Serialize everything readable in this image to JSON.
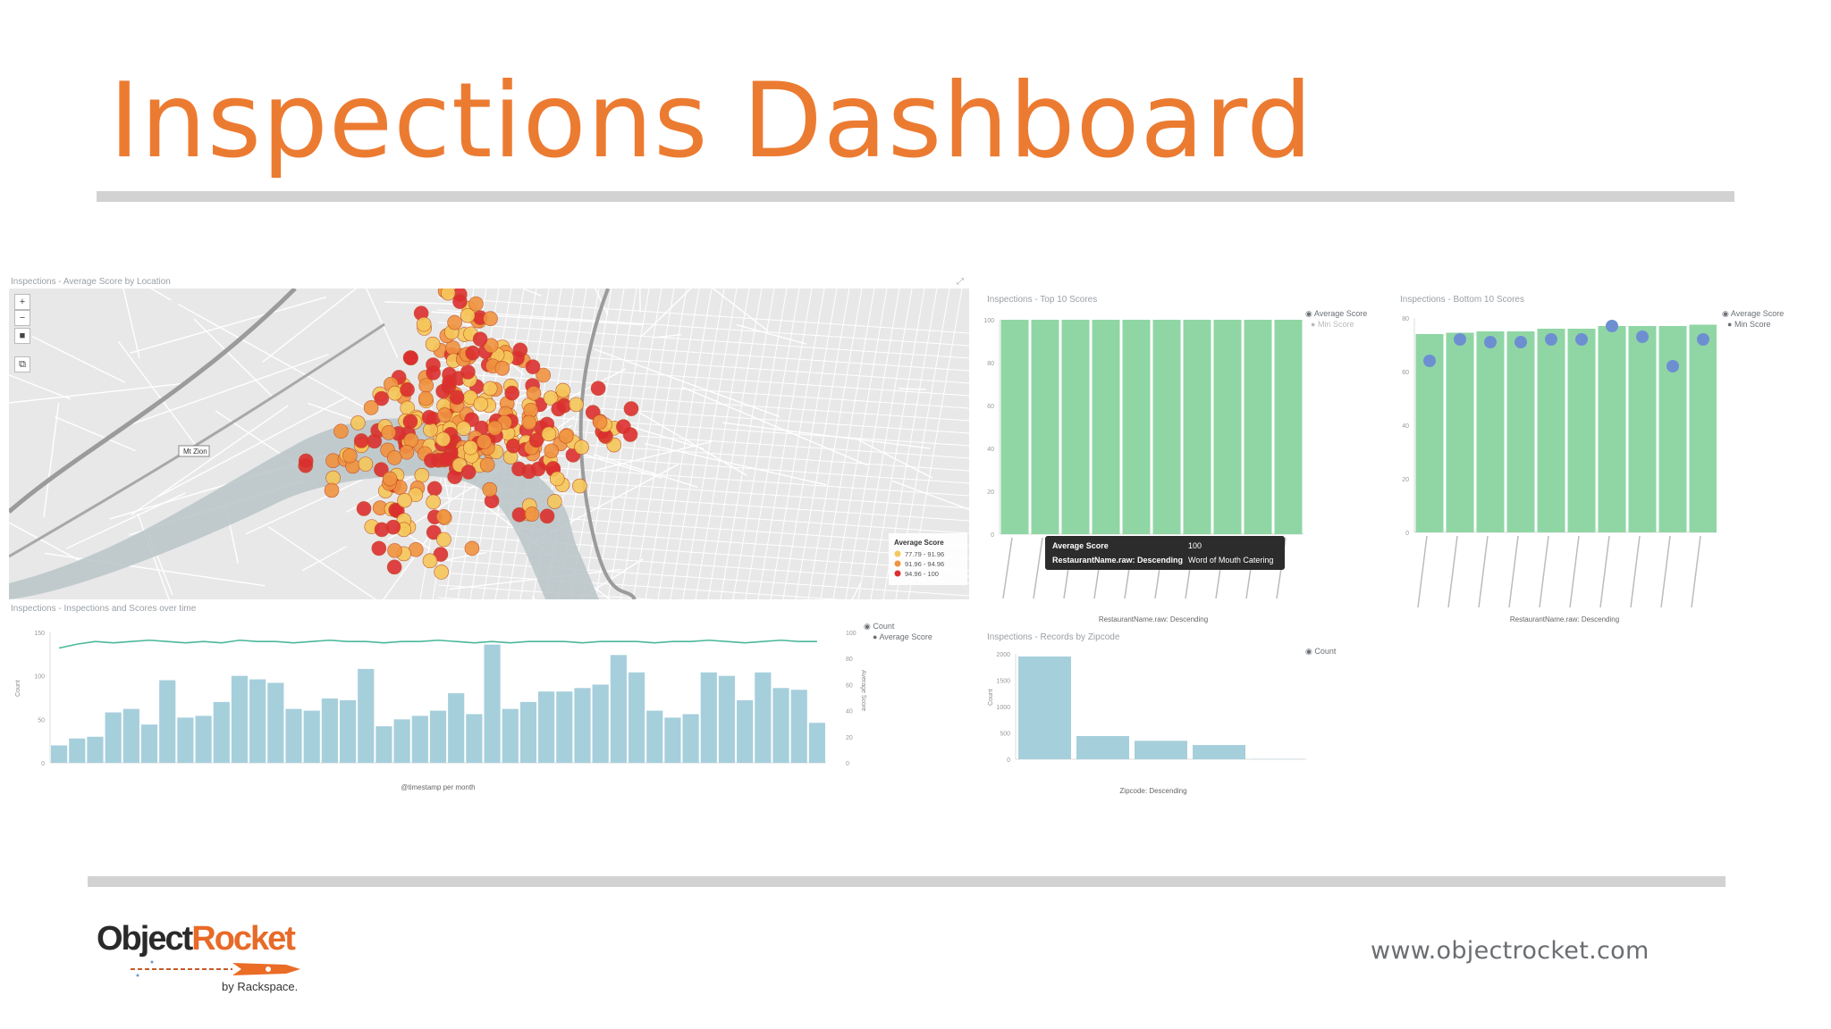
{
  "slide": {
    "title": "Inspections Dashboard",
    "url": "www.objectrocket.com",
    "logo": {
      "object": "Object",
      "rocket": "Rocket",
      "sub": "by Rackspace."
    }
  },
  "panels": {
    "map": {
      "title": "Inspections - Average Score by Location",
      "road_label": "Mt Zion",
      "legend_title": "Average Score",
      "legend_items": [
        "77.79 - 91.96",
        "91.96 - 94.96",
        "94.96 - 100"
      ],
      "legend_colors": [
        "#f6c75a",
        "#f09340",
        "#dc2f2f"
      ]
    },
    "top10": {
      "title": "Inspections - Top 10 Scores",
      "legend": [
        "Average Score",
        "Min Score"
      ],
      "x_title": "RestaurantName.raw: Descending",
      "tooltip": {
        "k1": "Average Score",
        "v1": "100",
        "k2": "RestaurantName.raw: Descending",
        "v2": "Word of Mouth Catering"
      }
    },
    "bottom10": {
      "title": "Inspections - Bottom 10 Scores",
      "legend": [
        "Average Score",
        "Min Score"
      ],
      "x_title": "RestaurantName.raw: Descending"
    },
    "overtime": {
      "title": "Inspections - Inspections and Scores over time",
      "legend": [
        "Count",
        "Average Score"
      ],
      "x_title": "@timestamp per month",
      "y_left": "Count",
      "y_right": "Average Score"
    },
    "zipcode": {
      "title": "Inspections - Records by Zipcode",
      "legend": [
        "Count"
      ],
      "x_title": "Zipcode: Descending",
      "y_label": "Count"
    }
  },
  "chart_data": [
    {
      "type": "bar",
      "title": "Inspections - Top 10 Scores",
      "xlabel": "RestaurantName.raw: Descending",
      "ylim": [
        0,
        100
      ],
      "series": [
        {
          "name": "Average Score",
          "values": [
            100,
            100,
            100,
            100,
            100,
            100,
            100,
            100,
            100,
            100
          ]
        }
      ]
    },
    {
      "type": "bar",
      "title": "Inspections - Bottom 10 Scores",
      "xlabel": "RestaurantName.raw: Descending",
      "ylim": [
        0,
        80
      ],
      "series": [
        {
          "name": "Average Score",
          "values": [
            74,
            74.5,
            75,
            75,
            76,
            76,
            77,
            77,
            77,
            77.5
          ]
        },
        {
          "name": "Min Score",
          "values": [
            64,
            72,
            71,
            71,
            72,
            72,
            77,
            73,
            62,
            72
          ]
        }
      ]
    },
    {
      "type": "bar",
      "title": "Inspections - Inspections and Scores over time",
      "xlabel": "@timestamp per month",
      "ylabel": "Count",
      "ylim": [
        0,
        150
      ],
      "y2lim": [
        0,
        100
      ],
      "series": [
        {
          "name": "Count",
          "values": [
            20,
            28,
            30,
            58,
            62,
            44,
            95,
            52,
            54,
            70,
            100,
            96,
            92,
            62,
            60,
            74,
            72,
            108,
            42,
            50,
            54,
            60,
            80,
            56,
            136,
            62,
            70,
            82,
            82,
            86,
            90,
            124,
            104,
            60,
            52,
            56,
            104,
            100,
            72,
            104,
            86,
            84,
            46
          ]
        },
        {
          "name": "Average Score",
          "values": [
            88,
            91,
            93,
            92,
            93,
            94,
            93,
            92,
            93,
            92,
            94,
            93,
            93,
            92,
            93,
            94,
            93,
            93,
            92,
            93,
            93,
            94,
            93,
            92,
            93,
            92,
            93,
            93,
            93,
            92,
            93,
            93,
            93,
            92,
            93,
            93,
            94,
            93,
            92,
            93,
            94,
            93,
            93
          ]
        }
      ]
    },
    {
      "type": "bar",
      "title": "Inspections - Records by Zipcode",
      "xlabel": "Zipcode: Descending",
      "ylabel": "Count",
      "ylim": [
        0,
        2000
      ],
      "series": [
        {
          "name": "Count",
          "values": [
            1950,
            440,
            350,
            270,
            5
          ]
        }
      ]
    }
  ]
}
